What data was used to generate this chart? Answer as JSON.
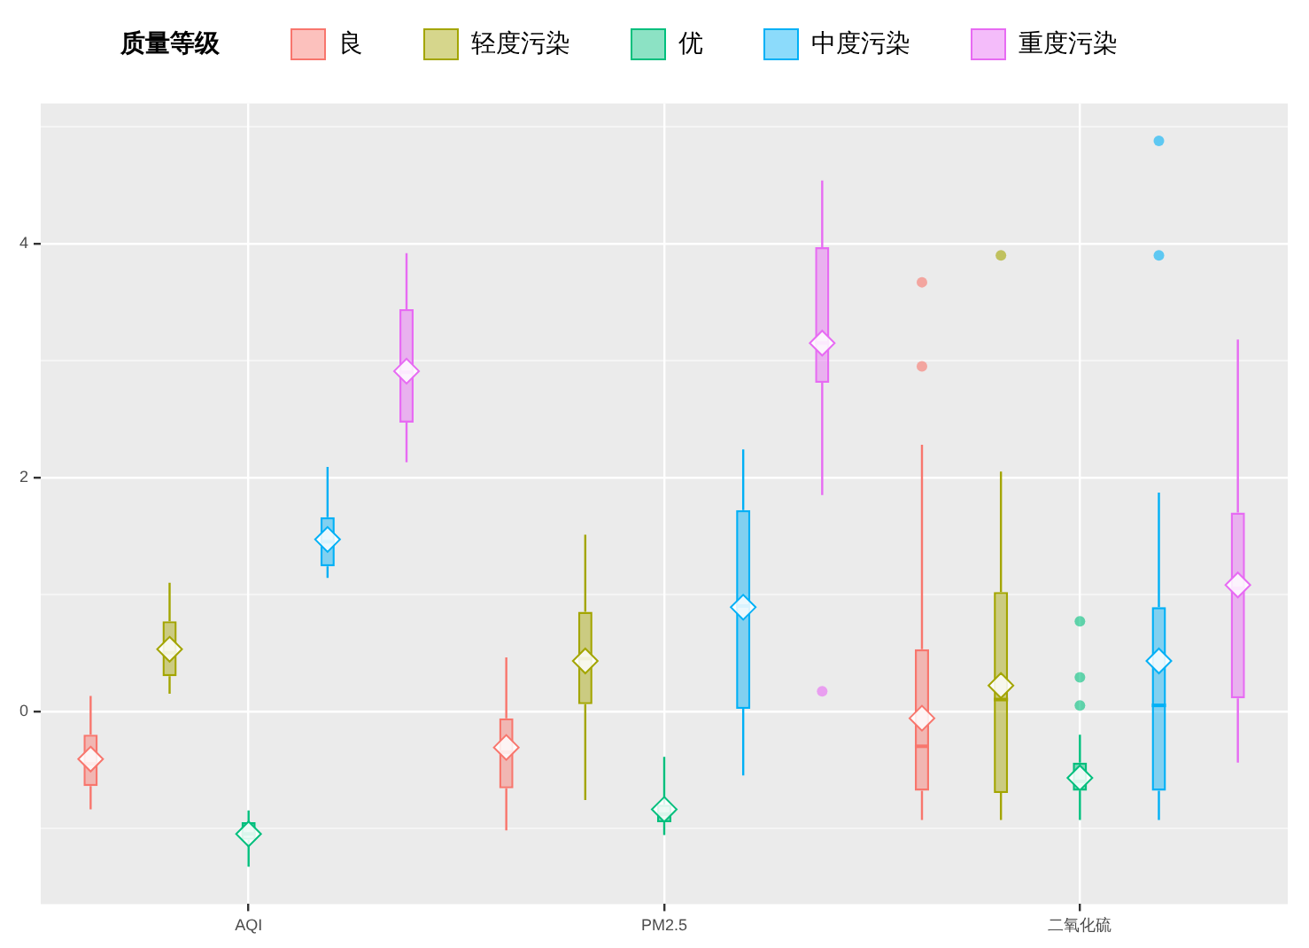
{
  "chart_data": {
    "type": "box",
    "legend_title": "质量等级",
    "categories": [
      "AQI",
      "PM2.5",
      "二氧化硫"
    ],
    "ylim": [
      -1.65,
      5.2
    ],
    "yticks": [
      {
        "value": -1,
        "label": null
      },
      0,
      {
        "value": 1,
        "label": null
      },
      2,
      {
        "value": 3,
        "label": null
      },
      4,
      {
        "value": 5,
        "label": null
      }
    ],
    "grid": true,
    "legend": "top",
    "series": [
      {
        "name": "良",
        "color": "#f8766d",
        "boxes": [
          {
            "low": -0.84,
            "q1": -0.64,
            "median": -0.45,
            "q3": -0.2,
            "high": 0.13,
            "mean": -0.41
          },
          {
            "low": -1.02,
            "q1": -0.66,
            "median": -0.35,
            "q3": -0.06,
            "high": 0.46,
            "mean": -0.31
          },
          {
            "low": -0.93,
            "q1": -0.68,
            "median": -0.3,
            "q3": 0.53,
            "high": 2.28,
            "mean": -0.06,
            "outliers": [
              3.67,
              2.95
            ]
          }
        ]
      },
      {
        "name": "轻度污染",
        "color": "#a3a500",
        "boxes": [
          {
            "low": 0.15,
            "q1": 0.3,
            "median": 0.5,
            "q3": 0.77,
            "high": 1.1,
            "mean": 0.53
          },
          {
            "low": -0.76,
            "q1": 0.06,
            "median": 0.45,
            "q3": 0.85,
            "high": 1.51,
            "mean": 0.43
          },
          {
            "low": -0.93,
            "q1": -0.7,
            "median": 0.1,
            "q3": 1.02,
            "high": 2.05,
            "mean": 0.22,
            "outliers": [
              3.9
            ]
          }
        ]
      },
      {
        "name": "优",
        "color": "#00bf7d",
        "boxes": [
          {
            "low": -1.33,
            "q1": -1.1,
            "median": -1.05,
            "q3": -0.95,
            "high": -0.85,
            "mean": -1.05
          },
          {
            "low": -1.06,
            "q1": -0.95,
            "median": -0.88,
            "q3": -0.8,
            "high": -0.39,
            "mean": -0.84
          },
          {
            "low": -0.93,
            "q1": -0.68,
            "median": -0.6,
            "q3": -0.44,
            "high": -0.2,
            "mean": -0.57,
            "outliers": [
              0.77,
              0.29,
              0.05
            ]
          }
        ]
      },
      {
        "name": "中度污染",
        "color": "#00b0f6",
        "boxes": [
          {
            "low": 1.14,
            "q1": 1.24,
            "median": 1.45,
            "q3": 1.66,
            "high": 2.09,
            "mean": 1.47
          },
          {
            "low": -0.55,
            "q1": 0.02,
            "median": 0.9,
            "q3": 1.72,
            "high": 2.24,
            "mean": 0.89
          },
          {
            "low": -0.93,
            "q1": -0.68,
            "median": 0.05,
            "q3": 0.89,
            "high": 1.87,
            "mean": 0.43,
            "outliers": [
              4.88,
              3.9
            ]
          }
        ]
      },
      {
        "name": "重度污染",
        "color": "#e76bf3",
        "boxes": [
          {
            "low": 2.13,
            "q1": 2.47,
            "median": 2.9,
            "q3": 3.44,
            "high": 3.92,
            "mean": 2.91
          },
          {
            "low": 1.85,
            "q1": 2.81,
            "median": 3.15,
            "q3": 3.97,
            "high": 4.54,
            "mean": 3.15,
            "outliers": [
              0.17
            ]
          },
          {
            "low": -0.44,
            "q1": 0.11,
            "median": 1.05,
            "q3": 1.7,
            "high": 3.18,
            "mean": 1.08
          }
        ]
      }
    ]
  }
}
